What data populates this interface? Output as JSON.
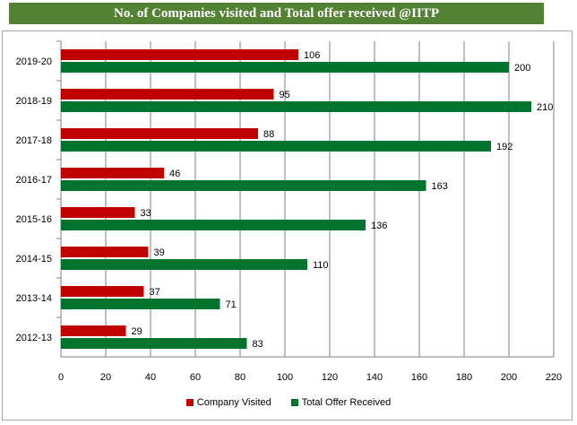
{
  "title": "No. of Companies visited and Total offer received @IITP",
  "chart_data": {
    "type": "bar",
    "orientation": "horizontal",
    "categories": [
      "2019-20",
      "2018-19",
      "2017-18",
      "2016-17",
      "2015-16",
      "2014-15",
      "2013-14",
      "2012-13"
    ],
    "series": [
      {
        "name": "Company Visited",
        "color": "#c00000",
        "values": [
          106,
          95,
          88,
          46,
          33,
          39,
          37,
          29
        ]
      },
      {
        "name": "Total Offer Received",
        "color": "#00732e",
        "values": [
          200,
          210,
          192,
          163,
          136,
          110,
          71,
          83
        ]
      }
    ],
    "xlim": [
      0,
      220
    ],
    "xticks": [
      0,
      20,
      40,
      60,
      80,
      100,
      120,
      140,
      160,
      180,
      200,
      220
    ],
    "grid": true,
    "legend_position": "bottom"
  }
}
